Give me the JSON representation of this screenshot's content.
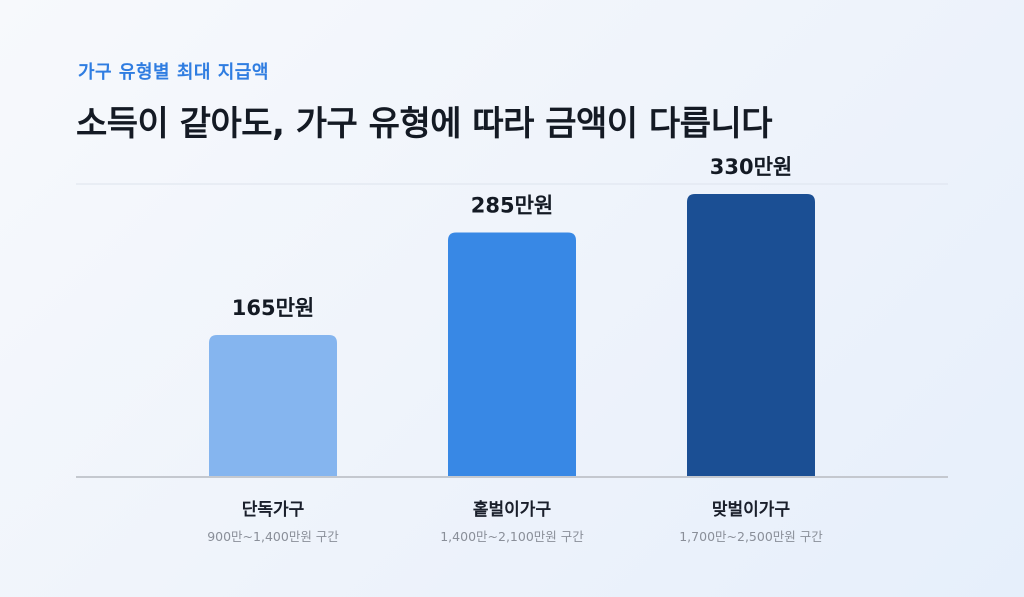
{
  "header": {
    "eyebrow": "가구 유형별 최대 지급액",
    "headline": "소득이 같아도, 가구 유형에 따라 금액이 다릅니다"
  },
  "chart_data": {
    "type": "bar",
    "title": "소득이 같아도, 가구 유형에 따라 금액이 다릅니다",
    "subtitle": "가구 유형별 최대 지급액",
    "categories": [
      "단독가구",
      "홑벌이가구",
      "맞벌이가구"
    ],
    "category_notes": [
      "900만~1,400만원 구간",
      "1,400만~2,100만원 구간",
      "1,700만~2,500만원 구간"
    ],
    "values": [
      165,
      285,
      330
    ],
    "value_labels": [
      "165만원",
      "285만원",
      "330만원"
    ],
    "unit": "만원",
    "bar_colors": [
      "#85b5ef",
      "#3888e5",
      "#1b4f94"
    ],
    "ylim": [
      0,
      350
    ],
    "xlabel": "",
    "ylabel": "",
    "grid": false,
    "legend": "none"
  }
}
